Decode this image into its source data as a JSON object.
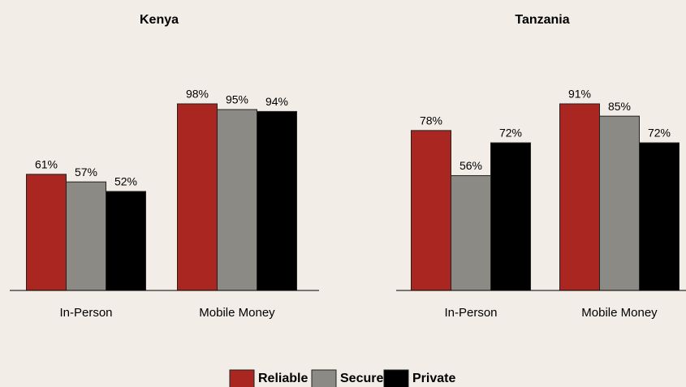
{
  "chart_data": [
    {
      "type": "bar",
      "title": "Kenya",
      "categories": [
        "In-Person",
        "Mobile Money"
      ],
      "series": [
        {
          "name": "Reliable",
          "color": "#a92621",
          "values": [
            61,
            98
          ],
          "value_labels": [
            "61%",
            "98%"
          ]
        },
        {
          "name": "Secure",
          "color": "#8b8a85",
          "values": [
            57,
            95
          ],
          "value_labels": [
            "57%",
            "95%"
          ]
        },
        {
          "name": "Private",
          "color": "#000000",
          "values": [
            52,
            94
          ],
          "value_labels": [
            "52%",
            "94%"
          ]
        }
      ]
    },
    {
      "type": "bar",
      "title": "Tanzania",
      "categories": [
        "In-Person",
        "Mobile Money"
      ],
      "series": [
        {
          "name": "Reliable",
          "color": "#a92621",
          "values": [
            78,
            91
          ],
          "value_labels": [
            "78%",
            "91%"
          ]
        },
        {
          "name": "Secure",
          "color": "#8b8a85",
          "values": [
            56,
            85
          ],
          "value_labels": [
            "56%",
            "85%"
          ]
        },
        {
          "name": "Private",
          "color": "#000000",
          "values": [
            72,
            72
          ],
          "value_labels": [
            "72%",
            "72%"
          ]
        }
      ]
    }
  ]
}
